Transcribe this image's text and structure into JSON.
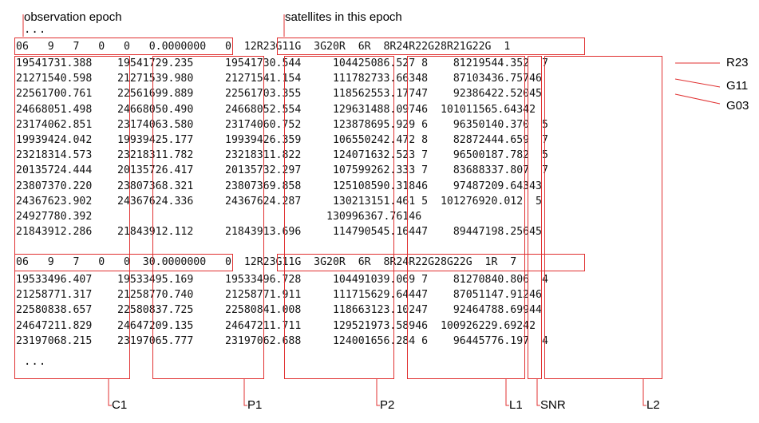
{
  "labels": {
    "observation_epoch": "observation epoch",
    "satellites_in_epoch": "satellites in this epoch",
    "ellipsis": "...",
    "C1": "C1",
    "P1": "P1",
    "P2": "P2",
    "L1": "L1",
    "SNR": "SNR",
    "L2": "L2",
    "R23": "R23",
    "G11": "G11",
    "G03": "G03"
  },
  "epoch1_header": "06   9   7   0   0   0.0000000   0  12R23G11G  3G20R  6R  8R24R22G28R21G22G  1",
  "epoch2_header": "06   9   7   0   0  30.0000000   0  12R23G11G  3G20R  6R  8R24R22G28G22G  1R  7",
  "epoch1_rows": [
    "19541731.388    19541729.235     19541730.544     104425086.527 8    81219544.352  7",
    "21271540.598    21271539.980     21271541.154     111782733.66348    87103436.75746",
    "22561700.761    22561699.889     22561703.355     118562553.17747    92386422.52045",
    "24668051.498    24668050.490     24668052.554     129631488.09746  101011565.64342",
    "23174062.851    23174063.580     23174060.752     123878695.929 6    96350140.370  5",
    "19939424.042    19939425.177     19939426.359     106550242.472 8    82872444.659  7",
    "23218314.573    23218311.782     23218311.822     124071632.523 7    96500187.782  5",
    "20135724.444    20135726.417     20135732.297     107599262.333 7    83688337.807  7",
    "23807370.220    23807368.321     23807369.858     125108590.31846    97487209.64343",
    "24367623.902    24367624.336     24367624.287     130213151.461 5  101276920.012  5",
    "24927780.392                                     130996367.76146",
    "21843912.286    21843912.112     21843913.696     114790545.16447    89447198.25645"
  ],
  "epoch2_rows": [
    "19533496.407    19533495.169     19533496.728     104491039.069 7    81270840.806  4",
    "21258771.317    21258770.740     21258771.911     111715629.64447    87051147.91246",
    "22580838.657    22580837.725     22580841.008     118663123.10247    92464788.69944",
    "24647211.829    24647209.135     24647211.711     129521973.58946  100926229.69242",
    "23197068.215    23197065.777     23197062.688     124001656.284 6    96445776.197  4"
  ]
}
